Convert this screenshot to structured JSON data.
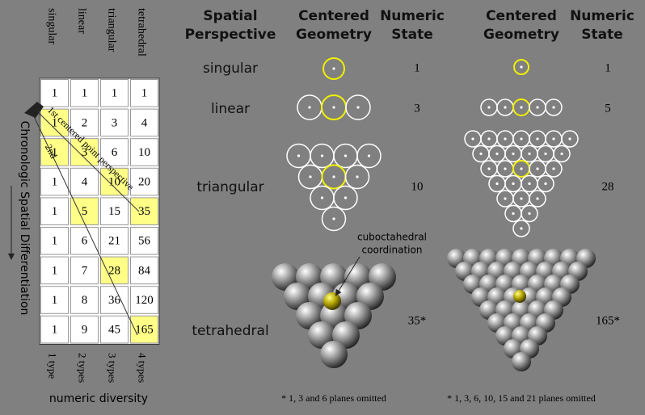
{
  "table": {
    "column_headers": [
      "singular",
      "linear",
      "triangular",
      "tetrahedral"
    ],
    "rows": [
      [
        1,
        1,
        1,
        1
      ],
      [
        1,
        2,
        3,
        4
      ],
      [
        1,
        3,
        6,
        10
      ],
      [
        1,
        4,
        10,
        20
      ],
      [
        1,
        5,
        15,
        35
      ],
      [
        1,
        6,
        21,
        56
      ],
      [
        1,
        7,
        28,
        84
      ],
      [
        1,
        8,
        36,
        120
      ],
      [
        1,
        9,
        45,
        165
      ]
    ],
    "row_axis_label": "Chronologic Spatial Differentiation",
    "column_types": [
      "1 type",
      "2 types",
      "3 types",
      "4 types"
    ],
    "column_axis_label": "numeric diversity",
    "annotations": [
      "1st centered point perspective",
      "2nd"
    ]
  },
  "panel": {
    "headers": [
      [
        "Spatial",
        "Perspective"
      ],
      [
        "Centered",
        "Geometry"
      ],
      [
        "Numeric",
        "State"
      ],
      [
        "Centered",
        "Geometry"
      ],
      [
        "Numeric",
        "State"
      ]
    ],
    "rows": [
      {
        "perspective": "singular",
        "state_a": "1",
        "state_b": "1"
      },
      {
        "perspective": "linear",
        "state_a": "3",
        "state_b": "5"
      },
      {
        "perspective": "triangular",
        "state_a": "10",
        "state_b": "28"
      },
      {
        "perspective": "tetrahedral",
        "state_a": "35*",
        "state_b": "165*"
      }
    ],
    "callout": [
      "cuboctahedral",
      "coordination"
    ],
    "footnotes": [
      "* 1, 3 and 6 planes omitted",
      "* 1, 3, 6, 10, 15 and 21 planes omitted"
    ]
  }
}
